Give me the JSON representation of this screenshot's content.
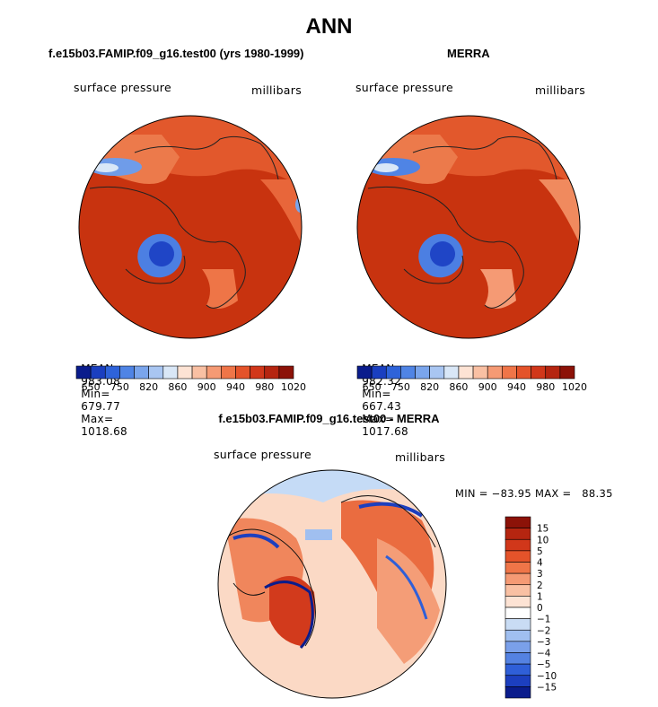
{
  "page": {
    "title": "ANN",
    "diff_title": "f.e15b03.FAMIP.f09_g16.test00 - MERRA"
  },
  "panels": [
    {
      "title": "f.e15b03.FAMIP.f09_g16.test00 (yrs 1980-1999)",
      "variable": "surface pressure",
      "units": "millibars",
      "stats": {
        "mean_label": "MEAN=",
        "mean": "983.08",
        "min_label": "Min=",
        "min": "679.77",
        "max_label": "Max=",
        "max": "1018.68"
      }
    },
    {
      "title": "MERRA",
      "variable": "surface pressure",
      "units": "millibars",
      "stats": {
        "mean_label": "MEAN=",
        "mean": "982.32",
        "min_label": "Min=",
        "min": "667.43",
        "max_label": "Max=",
        "max": "1017.68"
      }
    }
  ],
  "diff_panel": {
    "variable": "surface pressure",
    "units": "millibars",
    "minmax_text": "MIN = −83.95 MAX =   88.35"
  },
  "colorbar_abs": {
    "colors": [
      "#0a1c8c",
      "#1a3fc0",
      "#2e63d9",
      "#4f84e5",
      "#7aa5ec",
      "#a9c6f2",
      "#d9e7f7",
      "#fde3d4",
      "#f9c0a3",
      "#f59a74",
      "#ef7548",
      "#e4532a",
      "#d1371a",
      "#b52510",
      "#8c1208"
    ],
    "labels": [
      "650",
      "750",
      "820",
      "860",
      "900",
      "940",
      "980",
      "1020"
    ]
  },
  "colorbar_diff": {
    "colors": [
      "#8c1208",
      "#b52510",
      "#d1371a",
      "#e4532a",
      "#ef7548",
      "#f59a74",
      "#f9c0a3",
      "#fde3d4",
      "#ffffff",
      "#c9dcf4",
      "#a0bff0",
      "#7aa0ea",
      "#5482e2",
      "#2f5fd8",
      "#1c3fbf",
      "#0a1c8c"
    ],
    "labels": [
      "15",
      "10",
      "5",
      "4",
      "3",
      "2",
      "1",
      "0",
      "−1",
      "−2",
      "−3",
      "−4",
      "−5",
      "−10",
      "−15"
    ]
  },
  "chart_data": [
    {
      "type": "heatmap",
      "title": "f.e15b03.FAMIP.f09_g16.test00 (yrs 1980-1999)",
      "subtitle": "surface pressure",
      "units": "millibars",
      "projection": "polar stereographic (north)",
      "levels": [
        650,
        700,
        750,
        800,
        820,
        840,
        860,
        880,
        900,
        920,
        940,
        960,
        980,
        1000,
        1020
      ],
      "mean": 983.08,
      "min": 679.77,
      "max": 1018.68
    },
    {
      "type": "heatmap",
      "title": "MERRA",
      "subtitle": "surface pressure",
      "units": "millibars",
      "projection": "polar stereographic (north)",
      "levels": [
        650,
        700,
        750,
        800,
        820,
        840,
        860,
        880,
        900,
        920,
        940,
        960,
        980,
        1000,
        1020
      ],
      "mean": 982.32,
      "min": 667.43,
      "max": 1017.68
    },
    {
      "type": "heatmap",
      "title": "f.e15b03.FAMIP.f09_g16.test00 - MERRA",
      "subtitle": "surface pressure",
      "units": "millibars",
      "projection": "polar stereographic (north)",
      "levels": [
        -15,
        -10,
        -5,
        -4,
        -3,
        -2,
        -1,
        0,
        1,
        2,
        3,
        4,
        5,
        10,
        15
      ],
      "min": -83.95,
      "max": 88.35
    }
  ]
}
